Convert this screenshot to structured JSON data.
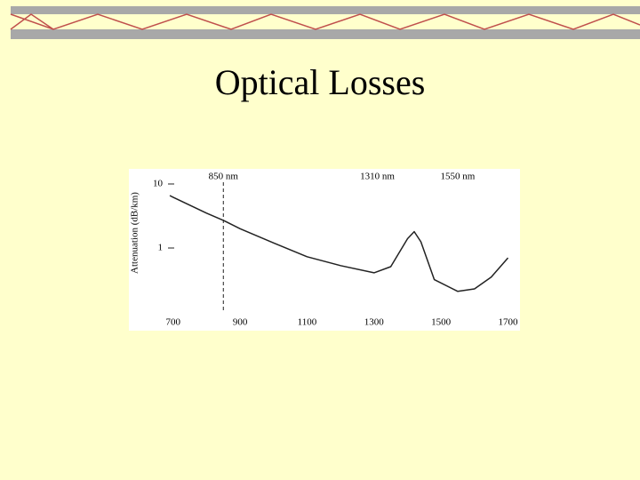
{
  "chart_data": {
    "type": "line",
    "title": "Optical Losses",
    "y_label": "Attenuation (dB/km)",
    "x": [
      690,
      700,
      800,
      850,
      900,
      1000,
      1100,
      1200,
      1300,
      1350,
      1400,
      1420,
      1440,
      1480,
      1550,
      1600,
      1650,
      1700
    ],
    "values": [
      6.6,
      6.2,
      3.5,
      2.7,
      2.0,
      1.2,
      0.73,
      0.53,
      0.41,
      0.51,
      1.4,
      1.8,
      1.25,
      0.32,
      0.21,
      0.23,
      0.35,
      0.7
    ],
    "color": "#222222",
    "xlim": [
      690,
      1720
    ],
    "xticks": [
      700,
      900,
      1100,
      1300,
      1500,
      1700
    ],
    "ylim": [
      0.1,
      15
    ],
    "yticks": [
      1,
      10
    ],
    "yscale": "log",
    "vlines": [
      850
    ],
    "annotations": [
      {
        "text": "850 nm",
        "x": 850
      },
      {
        "text": "1310 nm",
        "x": 1310
      },
      {
        "text": "1550 nm",
        "x": 1550
      }
    ]
  }
}
